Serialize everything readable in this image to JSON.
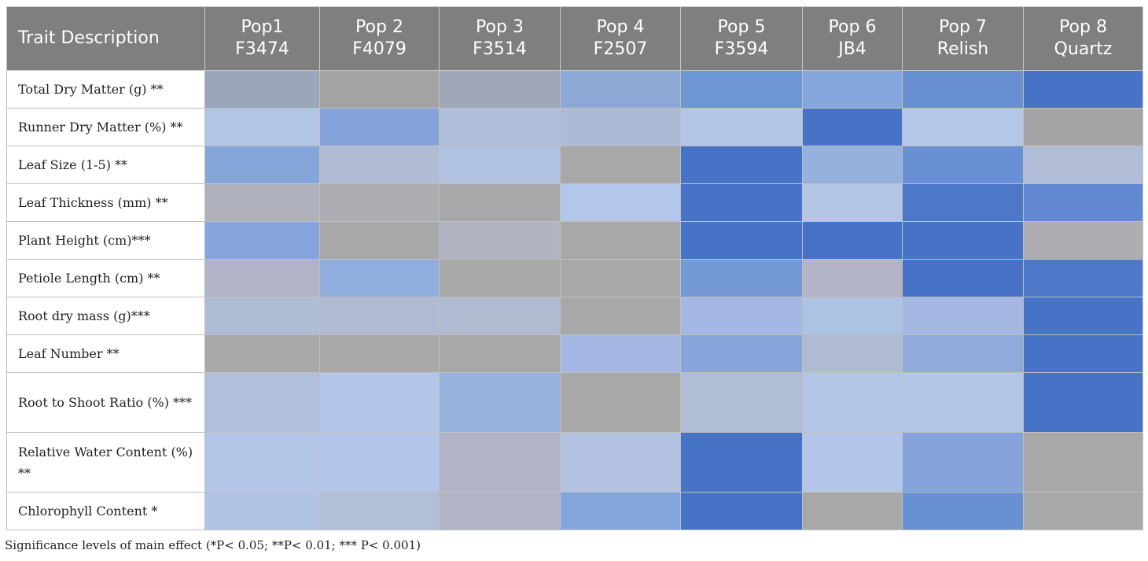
{
  "table": {
    "header_trait": "Trait Description",
    "columns": [
      {
        "line1": "Pop1",
        "line2": "F3474"
      },
      {
        "line1": "Pop 2",
        "line2": "F4079"
      },
      {
        "line1": "Pop 3",
        "line2": "F3514"
      },
      {
        "line1": "Pop 4",
        "line2": "F2507"
      },
      {
        "line1": "Pop 5",
        "line2": "F3594"
      },
      {
        "line1": "Pop 6",
        "line2": "JB4"
      },
      {
        "line1": "Pop 7",
        "line2": "Relish"
      },
      {
        "line1": "Pop 8",
        "line2": "Quartz"
      }
    ],
    "rows": [
      {
        "trait": "Total Dry Matter (g) **",
        "colors": [
          "#9aa6ba",
          "#a3a3a3",
          "#a0a7b8",
          "#8fa9d6",
          "#6e95d4",
          "#85a6dc",
          "#6890d2",
          "#4673c6"
        ]
      },
      {
        "trait": "Runner Dry Matter (%) **",
        "colors": [
          "#b1c5e4",
          "#85a3db",
          "#afbfdb",
          "#adbad6",
          "#b3c6e4",
          "#4673c6",
          "#b3c7e9",
          "#a5a5a5"
        ]
      },
      {
        "trait": "Leaf Size (1-5) **",
        "colors": [
          "#85a6db",
          "#b0bbd6",
          "#b1c3e1",
          "#a8a8a8",
          "#4673c6",
          "#97b1df",
          "#6990d4",
          "#b1bdd6"
        ]
      },
      {
        "trait": "Leaf Thickness (mm) **",
        "colors": [
          "#aeb0bb",
          "#acadb2",
          "#a8a8a8",
          "#b3c7eb",
          "#4673c6",
          "#b3c6e4",
          "#4c78c8",
          "#6288d1"
        ]
      },
      {
        "trait": "Plant Height (cm)***",
        "colors": [
          "#85a5dc",
          "#a8a8a8",
          "#b0b3c2",
          "#a8a8a8",
          "#4673c6",
          "#4673c6",
          "#4673c6",
          "#adadb2"
        ]
      },
      {
        "trait": "Petiole Length (cm) **",
        "colors": [
          "#b0b4c6",
          "#92aedf",
          "#a8a8a8",
          "#a8a8a8",
          "#7599d4",
          "#b3b5c6",
          "#4673c6",
          "#4d79c8"
        ]
      },
      {
        "trait": "Root dry mass (g)***",
        "colors": [
          "#afbcd6",
          "#b0bad2",
          "#b0bbd2",
          "#a8a8a8",
          "#a5b8e3",
          "#adc3e4",
          "#a5b7e3",
          "#4673c6"
        ]
      },
      {
        "trait": "Leaf Number **",
        "colors": [
          "#a8a8a8",
          "#a8a8a8",
          "#a8a8a8",
          "#a5b8e3",
          "#87a5da",
          "#aebbd2",
          "#90aadc",
          "#4673c6"
        ]
      },
      {
        "trait": "Root to Shoot Ratio (%) ***",
        "tall": true,
        "colors": [
          "#b0bfdc",
          "#b3c6e9",
          "#9ab3de",
          "#a8a8a8",
          "#b0bdd6",
          "#b3c6e7",
          "#b3c6e7",
          "#4673c6"
        ]
      },
      {
        "trait": "Relative Water Content (%) **",
        "tall": true,
        "colors": [
          "#b3c6e7",
          "#b3c6e9",
          "#b0b4c6",
          "#b3c3e1",
          "#4673c6",
          "#b3c6e9",
          "#85a3da",
          "#a8a8a8"
        ]
      },
      {
        "trait": "Chlorophyll Content *",
        "colors": [
          "#b1c4e5",
          "#b1bfd9",
          "#b0b4c6",
          "#85a6dc",
          "#4673c6",
          "#a8a8a8",
          "#6890d2",
          "#a8a8a8"
        ]
      }
    ]
  },
  "footnote": "Significance levels of main effect (*P< 0.05; **P< 0.01; *** P< 0.001)"
}
